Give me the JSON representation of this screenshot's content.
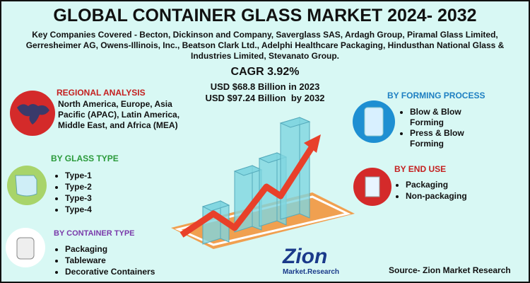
{
  "header": {
    "title": "GLOBAL CONTAINER GLASS MARKET 2024- 2032",
    "companies": "Key Companies Covered - Becton, Dickinson and Company, Saverglass SAS, Ardagh Group, Piramal Glass Limited, Gerresheimer AG, Owens-Illinois, Inc., Beatson Clark Ltd., Adelphi Healthcare Packaging, Hindusthan National Glass & Industries Limited, Stevanato Group.",
    "cagr": "CAGR 3.92%",
    "market_2023": "USD $68.8 Billion in 2023",
    "market_2032": "USD $97.24 Billion  by 2032"
  },
  "regional": {
    "title": "REGIONAL ANALYSIS",
    "text": "North America, Europe, Asia Pacific (APAC), Latin America, Middle East, and Africa (MEA)"
  },
  "glass_type": {
    "title": "BY GLASS TYPE",
    "items": [
      "Type-1",
      "Type-2",
      "Type-3",
      "Type-4"
    ]
  },
  "container_type": {
    "title": "BY CONTAINER TYPE",
    "items": [
      "Packaging",
      "Tableware",
      "Decorative Containers"
    ]
  },
  "forming_process": {
    "title": "BY FORMING PROCESS",
    "items": [
      "Blow & Blow Forming",
      "Press & Blow Forming"
    ]
  },
  "end_use": {
    "title": "BY END USE",
    "items": [
      "Packaging",
      "Non-packaging"
    ]
  },
  "logo": {
    "name": "Zion",
    "tagline": "Market.Research"
  },
  "source": "Source- Zion Market Research"
}
